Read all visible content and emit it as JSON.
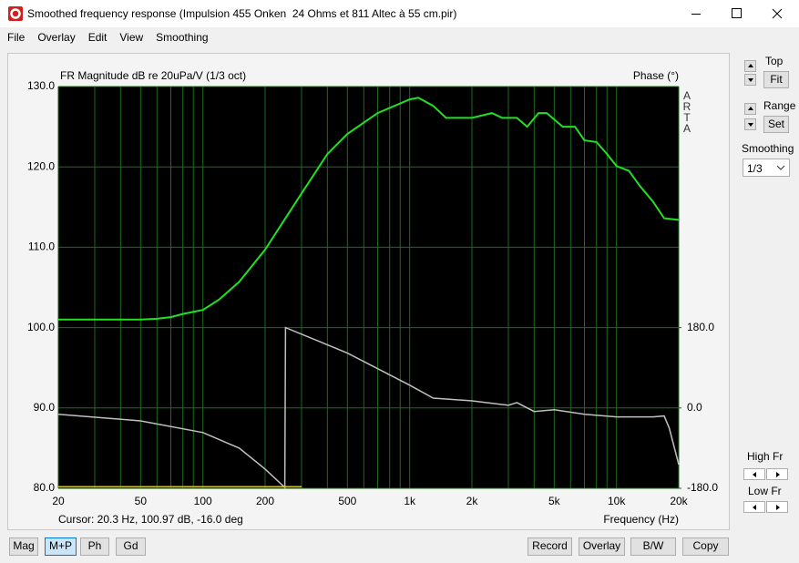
{
  "window": {
    "title": "Smoothed frequency response (Impulsion 455 Onken  24 Ohms et 811 Altec à 55 cm.pir)"
  },
  "menu": [
    "File",
    "Overlay",
    "Edit",
    "View",
    "Smoothing"
  ],
  "chart_data": {
    "type": "line",
    "title": "FR Magnitude dB re 20uPa/V (1/3 oct)",
    "y2_label": "Phase (°)",
    "watermark": "ARTA",
    "x_label": "Frequency (Hz)",
    "cursor": "Cursor: 20.3 Hz, 100.97 dB, -16.0 deg",
    "xscale": "log",
    "xlim": [
      20,
      20000
    ],
    "xticks": [
      20,
      50,
      100,
      200,
      500,
      {
        "value": 1000,
        "label": "1k"
      },
      {
        "value": 2000,
        "label": "2k"
      },
      {
        "value": 5000,
        "label": "5k"
      },
      {
        "value": 10000,
        "label": "10k"
      },
      {
        "value": 20000,
        "label": "20k"
      }
    ],
    "x_minor_ticks": [
      30,
      40,
      60,
      70,
      80,
      90,
      300,
      400,
      600,
      700,
      800,
      900,
      3000,
      4000,
      6000,
      7000,
      8000,
      9000
    ],
    "ylim": [
      80,
      130
    ],
    "yticks": [
      {
        "value": 80,
        "label": "80.0"
      },
      {
        "value": 90,
        "label": "90.0"
      },
      {
        "value": 100,
        "label": "100.0"
      },
      {
        "value": 110,
        "label": "110.0"
      },
      {
        "value": 120,
        "label": "120.0"
      },
      {
        "value": 130,
        "label": "130.0"
      }
    ],
    "y2lim": [
      -180,
      720
    ],
    "y2ticks": [
      {
        "value": -180,
        "label": "-180.0"
      },
      {
        "value": 0,
        "label": "0.0"
      },
      {
        "value": 180,
        "label": "180.0"
      }
    ],
    "grid": true,
    "grid_color": "#1e6a1e",
    "background": "#000000",
    "series": [
      {
        "color": "#22e022",
        "x": [
          20,
          50,
          60,
          70,
          80,
          100,
          120,
          150,
          200,
          300,
          400,
          500,
          700,
          1000,
          1100,
          1300,
          1500,
          2000,
          2500,
          2800,
          3300,
          3700,
          4200,
          4600,
          5500,
          6300,
          7000,
          8000,
          9000,
          10000,
          11500,
          13000,
          15000,
          17000,
          20000
        ],
        "values": [
          101.0,
          101.0,
          101.1,
          101.3,
          101.7,
          102.2,
          103.5,
          105.7,
          109.7,
          116.7,
          121.6,
          124.1,
          126.7,
          128.4,
          128.6,
          127.6,
          126.1,
          126.1,
          126.7,
          126.1,
          126.1,
          125.0,
          126.7,
          126.7,
          125.0,
          125.0,
          123.3,
          123.1,
          121.6,
          120.1,
          119.5,
          117.6,
          115.7,
          113.6,
          113.4
        ]
      },
      {
        "color": "#c0c0c0",
        "axis": "y2",
        "x": [
          20,
          50,
          100,
          150,
          200,
          249,
          251,
          500,
          1000,
          1300,
          2000,
          3000,
          3300,
          4000,
          5000,
          7000,
          10000,
          15000,
          17000,
          18000,
          20000
        ],
        "values": [
          -14,
          -29,
          -55,
          -90,
          -137,
          -178,
          180,
          123,
          51,
          22,
          16,
          6,
          12,
          -8,
          -4,
          -14,
          -20,
          -20,
          -18,
          -45,
          -127
        ]
      },
      {
        "color": "#d4c020",
        "x": [
          20,
          300
        ],
        "values": [
          80.2,
          80.2
        ]
      }
    ]
  },
  "side_panel": {
    "top": "Top",
    "fit": "Fit",
    "range": "Range",
    "set": "Set",
    "smoothing": "Smoothing",
    "smoothing_value": "1/3",
    "high_fr": "High Fr",
    "low_fr": "Low Fr"
  },
  "buttons": [
    "Mag",
    "M+P",
    "Ph",
    "Gd",
    "Record",
    "Overlay",
    "B/W",
    "Copy"
  ]
}
